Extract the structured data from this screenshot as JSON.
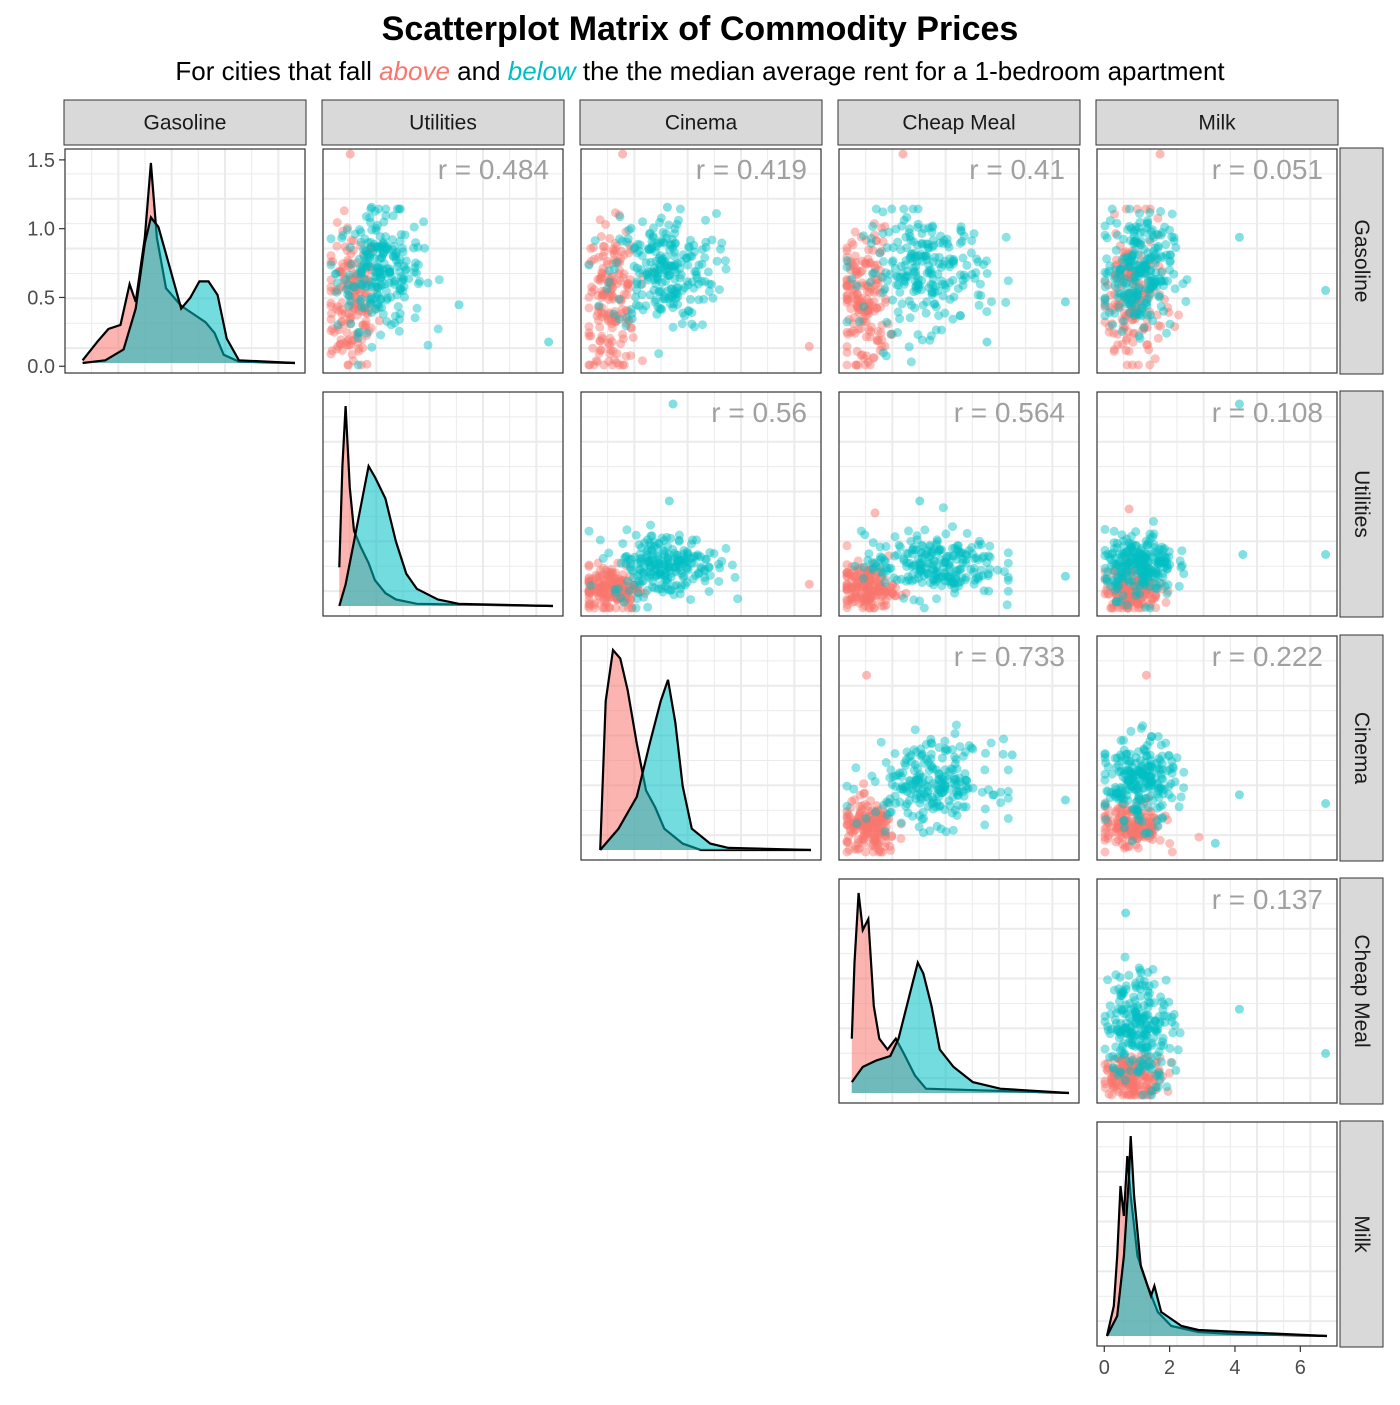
{
  "title": "Scatterplot Matrix of Commodity Prices",
  "subtitle": {
    "before": "For cities that fall ",
    "above": "above",
    "middle": " and ",
    "below": "below",
    "after": " the the median average rent for a 1-bedroom apartment"
  },
  "colors": {
    "above": "#F8766D",
    "below": "#00BFC4",
    "outline": "#000000",
    "strip_fill": "#D9D9D9",
    "grid": "#EBEBEB",
    "corr_text": "#A0A0A0"
  },
  "chart_data": {
    "type": "scatter",
    "variables": [
      "Gasoline",
      "Utilities",
      "Cinema",
      "Cheap Meal",
      "Milk"
    ],
    "groups": [
      {
        "key": "above",
        "label": "above"
      },
      {
        "key": "below",
        "label": "below"
      }
    ],
    "y_axis_first_row": {
      "ticks": [
        "0.0",
        "0.5",
        "1.0",
        "1.5"
      ],
      "values": [
        0.0,
        0.5,
        1.0,
        1.5
      ],
      "ylim": [
        -0.02,
        1.55
      ]
    },
    "x_axis_last_col": {
      "ticks": [
        "0",
        "2",
        "4",
        "6"
      ],
      "values": [
        0,
        2,
        4,
        6
      ],
      "xlim": [
        -0.1,
        7.0
      ]
    },
    "ranges": {
      "Gasoline": [
        0.0,
        1.45
      ],
      "Utilities": [
        0.0,
        10.5
      ],
      "Cinema": [
        0.0,
        12.0
      ],
      "Cheap Meal": [
        0.0,
        8.0
      ],
      "Milk": [
        0.3,
        6.8
      ]
    },
    "correlations": [
      {
        "row": "Gasoline",
        "col": "Utilities",
        "label": "r = 0.484"
      },
      {
        "row": "Gasoline",
        "col": "Cinema",
        "label": "r = 0.419"
      },
      {
        "row": "Gasoline",
        "col": "Cheap Meal",
        "label": "r = 0.41"
      },
      {
        "row": "Gasoline",
        "col": "Milk",
        "label": "r = 0.051"
      },
      {
        "row": "Utilities",
        "col": "Cinema",
        "label": "r = 0.56"
      },
      {
        "row": "Utilities",
        "col": "Cheap Meal",
        "label": "r = 0.564"
      },
      {
        "row": "Utilities",
        "col": "Milk",
        "label": "r = 0.108"
      },
      {
        "row": "Cinema",
        "col": "Cheap Meal",
        "label": "r = 0.733"
      },
      {
        "row": "Cinema",
        "col": "Milk",
        "label": "r = 0.222"
      },
      {
        "row": "Cheap Meal",
        "col": "Milk",
        "label": "r = 0.137"
      }
    ],
    "densities": {
      "Gasoline": {
        "above": [
          [
            0.05,
            0.02
          ],
          [
            0.15,
            0.16
          ],
          [
            0.22,
            0.25
          ],
          [
            0.3,
            0.28
          ],
          [
            0.36,
            0.58
          ],
          [
            0.4,
            0.45
          ],
          [
            0.46,
            0.92
          ],
          [
            0.5,
            1.47
          ],
          [
            0.54,
            0.92
          ],
          [
            0.6,
            0.55
          ],
          [
            0.7,
            0.42
          ],
          [
            0.78,
            0.36
          ],
          [
            0.86,
            0.3
          ],
          [
            0.92,
            0.22
          ],
          [
            0.98,
            0.06
          ],
          [
            1.08,
            0.01
          ],
          [
            1.45,
            0.0
          ]
        ],
        "below": [
          [
            0.05,
            0.0
          ],
          [
            0.2,
            0.02
          ],
          [
            0.32,
            0.1
          ],
          [
            0.4,
            0.4
          ],
          [
            0.46,
            0.88
          ],
          [
            0.5,
            1.07
          ],
          [
            0.55,
            1.0
          ],
          [
            0.62,
            0.72
          ],
          [
            0.7,
            0.4
          ],
          [
            0.76,
            0.48
          ],
          [
            0.82,
            0.6
          ],
          [
            0.88,
            0.6
          ],
          [
            0.94,
            0.5
          ],
          [
            1.0,
            0.18
          ],
          [
            1.08,
            0.02
          ],
          [
            1.45,
            0.0
          ]
        ]
      },
      "Utilities": {
        "above": [
          [
            0.3,
            0.18
          ],
          [
            0.45,
            0.65
          ],
          [
            0.6,
            0.93
          ],
          [
            0.8,
            0.55
          ],
          [
            1.0,
            0.35
          ],
          [
            1.3,
            0.28
          ],
          [
            1.7,
            0.2
          ],
          [
            2.0,
            0.12
          ],
          [
            2.5,
            0.06
          ],
          [
            3.0,
            0.03
          ],
          [
            4.0,
            0.01
          ],
          [
            10.5,
            0.0
          ]
        ],
        "below": [
          [
            0.3,
            0.0
          ],
          [
            0.6,
            0.1
          ],
          [
            1.0,
            0.3
          ],
          [
            1.5,
            0.55
          ],
          [
            1.7,
            0.65
          ],
          [
            2.0,
            0.6
          ],
          [
            2.5,
            0.5
          ],
          [
            3.0,
            0.3
          ],
          [
            3.5,
            0.15
          ],
          [
            4.0,
            0.08
          ],
          [
            5.0,
            0.03
          ],
          [
            6.0,
            0.01
          ],
          [
            10.5,
            0.0
          ]
        ]
      },
      "Cinema": {
        "above": [
          [
            0.5,
            0.0
          ],
          [
            0.8,
            0.7
          ],
          [
            1.2,
            0.94
          ],
          [
            1.6,
            0.9
          ],
          [
            2.0,
            0.75
          ],
          [
            2.5,
            0.5
          ],
          [
            3.0,
            0.28
          ],
          [
            3.5,
            0.2
          ],
          [
            4.0,
            0.1
          ],
          [
            5.0,
            0.03
          ],
          [
            6.0,
            0.0
          ],
          [
            12.0,
            0.0
          ]
        ],
        "below": [
          [
            0.5,
            0.0
          ],
          [
            1.5,
            0.1
          ],
          [
            2.5,
            0.25
          ],
          [
            3.2,
            0.5
          ],
          [
            3.8,
            0.7
          ],
          [
            4.2,
            0.8
          ],
          [
            4.6,
            0.6
          ],
          [
            5.0,
            0.3
          ],
          [
            5.5,
            0.1
          ],
          [
            6.5,
            0.03
          ],
          [
            7.5,
            0.01
          ],
          [
            12.0,
            0.0
          ]
        ]
      },
      "Cheap Meal": {
        "above": [
          [
            0.1,
            0.25
          ],
          [
            0.2,
            0.6
          ],
          [
            0.35,
            0.92
          ],
          [
            0.5,
            0.75
          ],
          [
            0.7,
            0.8
          ],
          [
            0.9,
            0.4
          ],
          [
            1.1,
            0.25
          ],
          [
            1.4,
            0.2
          ],
          [
            1.7,
            0.25
          ],
          [
            2.0,
            0.18
          ],
          [
            2.4,
            0.08
          ],
          [
            2.8,
            0.02
          ],
          [
            8.0,
            0.0
          ]
        ],
        "below": [
          [
            0.1,
            0.05
          ],
          [
            0.5,
            0.12
          ],
          [
            1.0,
            0.15
          ],
          [
            1.5,
            0.17
          ],
          [
            1.8,
            0.25
          ],
          [
            2.2,
            0.45
          ],
          [
            2.5,
            0.6
          ],
          [
            2.7,
            0.55
          ],
          [
            3.0,
            0.4
          ],
          [
            3.3,
            0.2
          ],
          [
            3.8,
            0.12
          ],
          [
            4.5,
            0.05
          ],
          [
            5.5,
            0.02
          ],
          [
            8.0,
            0.0
          ]
        ]
      },
      "Milk": {
        "above": [
          [
            0.3,
            0.0
          ],
          [
            0.5,
            0.15
          ],
          [
            0.6,
            0.4
          ],
          [
            0.7,
            0.75
          ],
          [
            0.8,
            0.6
          ],
          [
            0.9,
            0.9
          ],
          [
            1.0,
            0.7
          ],
          [
            1.2,
            0.4
          ],
          [
            1.5,
            0.25
          ],
          [
            1.8,
            0.12
          ],
          [
            2.2,
            0.05
          ],
          [
            3.0,
            0.02
          ],
          [
            4.0,
            0.01
          ],
          [
            6.8,
            0.0
          ]
        ],
        "below": [
          [
            0.3,
            0.0
          ],
          [
            0.6,
            0.1
          ],
          [
            0.8,
            0.4
          ],
          [
            0.95,
            0.8
          ],
          [
            1.0,
            1.0
          ],
          [
            1.1,
            0.7
          ],
          [
            1.3,
            0.35
          ],
          [
            1.6,
            0.2
          ],
          [
            1.7,
            0.25
          ],
          [
            1.9,
            0.12
          ],
          [
            2.5,
            0.05
          ],
          [
            3.0,
            0.03
          ],
          [
            4.2,
            0.02
          ],
          [
            6.8,
            0.0
          ]
        ]
      }
    },
    "scatter_clusters": {
      "note_axes": "cluster centers and spreads in data units (x = column variable, y = row variable)",
      "Gasoline|Utilities": {
        "above": {
          "n": 170,
          "cx": 1.0,
          "cy": 0.45,
          "sx": 0.6,
          "sy": 0.25
        },
        "below": {
          "n": 230,
          "cx": 2.3,
          "cy": 0.65,
          "sx": 1.0,
          "sy": 0.2
        },
        "outliers": {
          "above": [
            [
              0.9,
              1.47
            ]
          ],
          "below": [
            [
              10.2,
              0.16
            ],
            [
              1.9,
              1.1
            ],
            [
              6.0,
              0.42
            ]
          ]
        }
      },
      "Gasoline|Cinema": {
        "above": {
          "n": 170,
          "cx": 1.2,
          "cy": 0.45,
          "sx": 0.7,
          "sy": 0.25
        },
        "below": {
          "n": 230,
          "cx": 4.0,
          "cy": 0.65,
          "sx": 1.4,
          "sy": 0.2
        },
        "outliers": {
          "above": [
            [
              1.8,
              1.47
            ],
            [
              11.8,
              0.13
            ]
          ],
          "below": [
            [
              4.2,
              1.1
            ]
          ]
        }
      },
      "Gasoline|Cheap Meal": {
        "above": {
          "n": 170,
          "cx": 0.6,
          "cy": 0.45,
          "sx": 0.45,
          "sy": 0.25
        },
        "below": {
          "n": 230,
          "cx": 2.8,
          "cy": 0.65,
          "sx": 1.1,
          "sy": 0.2
        },
        "outliers": {
          "above": [
            [
              2.0,
              1.47
            ]
          ],
          "below": [
            [
              7.8,
              0.44
            ],
            [
              5.0,
              0.16
            ]
          ]
        }
      },
      "Gasoline|Milk": {
        "above": {
          "n": 170,
          "cx": 1.1,
          "cy": 0.45,
          "sx": 0.45,
          "sy": 0.25
        },
        "below": {
          "n": 230,
          "cx": 1.25,
          "cy": 0.65,
          "sx": 0.5,
          "sy": 0.2
        },
        "outliers": {
          "above": [
            [
              1.9,
              1.47
            ]
          ],
          "below": [
            [
              6.7,
              0.52
            ],
            [
              4.2,
              0.89
            ]
          ]
        }
      },
      "Utilities|Cinema": {
        "above": {
          "n": 170,
          "cx": 1.2,
          "cy": 1.0,
          "sx": 0.8,
          "sy": 0.6
        },
        "below": {
          "n": 230,
          "cx": 4.0,
          "cy": 2.2,
          "sx": 1.4,
          "sy": 0.8
        },
        "outliers": {
          "above": [
            [
              11.8,
              1.2
            ]
          ],
          "below": [
            [
              4.5,
              10.3
            ],
            [
              4.3,
              5.4
            ]
          ]
        }
      },
      "Utilities|Cheap Meal": {
        "above": {
          "n": 170,
          "cx": 0.7,
          "cy": 1.0,
          "sx": 0.5,
          "sy": 0.6
        },
        "below": {
          "n": 230,
          "cx": 3.0,
          "cy": 2.2,
          "sx": 1.2,
          "sy": 0.8
        },
        "outliers": {
          "above": [
            [
              1.0,
              4.8
            ]
          ],
          "below": [
            [
              7.8,
              1.6
            ],
            [
              2.6,
              5.4
            ]
          ]
        }
      },
      "Utilities|Milk": {
        "above": {
          "n": 170,
          "cx": 1.1,
          "cy": 1.0,
          "sx": 0.4,
          "sy": 0.6
        },
        "below": {
          "n": 230,
          "cx": 1.3,
          "cy": 2.2,
          "sx": 0.5,
          "sy": 0.8
        },
        "outliers": {
          "above": [
            [
              1.0,
              5.0
            ]
          ],
          "below": [
            [
              6.7,
              2.7
            ],
            [
              4.3,
              2.7
            ],
            [
              4.2,
              10.3
            ]
          ]
        }
      },
      "Cinema|Cheap Meal": {
        "above": {
          "n": 170,
          "cx": 0.8,
          "cy": 1.3,
          "sx": 0.5,
          "sy": 0.8
        },
        "below": {
          "n": 230,
          "cx": 3.0,
          "cy": 4.0,
          "sx": 1.1,
          "sy": 1.2
        },
        "outliers": {
          "above": [
            [
              0.7,
              10.2
            ]
          ],
          "below": [
            [
              7.8,
              3.0
            ],
            [
              5.9,
              5.6
            ]
          ]
        }
      },
      "Cinema|Milk": {
        "above": {
          "n": 170,
          "cx": 1.1,
          "cy": 1.5,
          "sx": 0.45,
          "sy": 0.7
        },
        "below": {
          "n": 230,
          "cx": 1.3,
          "cy": 4.0,
          "sx": 0.5,
          "sy": 1.2
        },
        "outliers": {
          "above": [
            [
              1.5,
              10.2
            ]
          ],
          "below": [
            [
              6.7,
              2.8
            ],
            [
              4.2,
              3.3
            ],
            [
              3.5,
              0.5
            ]
          ]
        }
      },
      "Cheap Meal|Milk": {
        "above": {
          "n": 170,
          "cx": 1.1,
          "cy": 0.7,
          "sx": 0.45,
          "sy": 0.4
        },
        "below": {
          "n": 230,
          "cx": 1.3,
          "cy": 2.7,
          "sx": 0.5,
          "sy": 1.1
        },
        "outliers": {
          "above": [],
          "below": [
            [
              6.7,
              1.6
            ],
            [
              4.2,
              3.3
            ],
            [
              0.9,
              7.0
            ]
          ]
        }
      }
    }
  }
}
